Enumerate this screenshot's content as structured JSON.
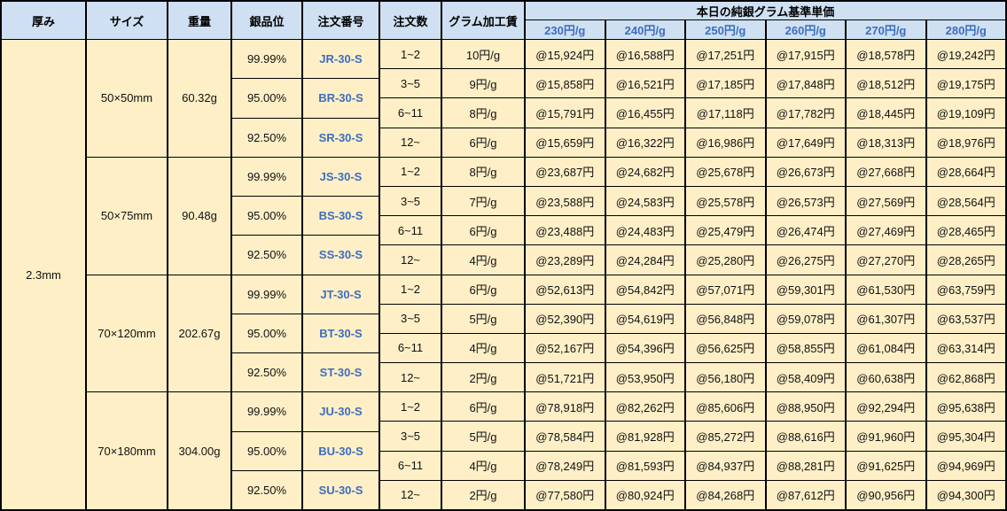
{
  "colors": {
    "header_bg": "#cee0f2",
    "body_bg": "#feefc7",
    "accent_blue": "#3e6dbf",
    "border": "#000000"
  },
  "header": {
    "thickness": "厚み",
    "size": "サイズ",
    "weight": "重量",
    "purity": "銀品位",
    "order_no": "注文番号",
    "order_qty": "注文数",
    "gram_fee": "グラム加工賃",
    "base_price_group": "本日の純銀グラム基準単価",
    "price_columns": [
      "230円/g",
      "240円/g",
      "250円/g",
      "260円/g",
      "270円/g",
      "280円/g"
    ]
  },
  "thickness_value": "2.3mm",
  "blocks": [
    {
      "size": "50×50mm",
      "weight": "60.32g",
      "purities": [
        {
          "purity": "99.99%",
          "code": "JR-30-S"
        },
        {
          "purity": "95.00%",
          "code": "BR-30-S"
        },
        {
          "purity": "92.50%",
          "code": "SR-30-S"
        }
      ],
      "rows": [
        {
          "qty": "1~2",
          "fee": "10円/g",
          "prices": [
            "@15,924円",
            "@16,588円",
            "@17,251円",
            "@17,915円",
            "@18,578円",
            "@19,242円"
          ]
        },
        {
          "qty": "3~5",
          "fee": "9円/g",
          "prices": [
            "@15,858円",
            "@16,521円",
            "@17,185円",
            "@17,848円",
            "@18,512円",
            "@19,175円"
          ]
        },
        {
          "qty": "6~11",
          "fee": "8円/g",
          "prices": [
            "@15,791円",
            "@16,455円",
            "@17,118円",
            "@17,782円",
            "@18,445円",
            "@19,109円"
          ]
        },
        {
          "qty": "12~",
          "fee": "6円/g",
          "prices": [
            "@15,659円",
            "@16,322円",
            "@16,986円",
            "@17,649円",
            "@18,313円",
            "@18,976円"
          ]
        }
      ]
    },
    {
      "size": "50×75mm",
      "weight": "90.48g",
      "purities": [
        {
          "purity": "99.99%",
          "code": "JS-30-S"
        },
        {
          "purity": "95.00%",
          "code": "BS-30-S"
        },
        {
          "purity": "92.50%",
          "code": "SS-30-S"
        }
      ],
      "rows": [
        {
          "qty": "1~2",
          "fee": "8円/g",
          "prices": [
            "@23,687円",
            "@24,682円",
            "@25,678円",
            "@26,673円",
            "@27,668円",
            "@28,664円"
          ]
        },
        {
          "qty": "3~5",
          "fee": "7円/g",
          "prices": [
            "@23,588円",
            "@24,583円",
            "@25,578円",
            "@26,573円",
            "@27,569円",
            "@28,564円"
          ]
        },
        {
          "qty": "6~11",
          "fee": "6円/g",
          "prices": [
            "@23,488円",
            "@24,483円",
            "@25,479円",
            "@26,474円",
            "@27,469円",
            "@28,465円"
          ]
        },
        {
          "qty": "12~",
          "fee": "4円/g",
          "prices": [
            "@23,289円",
            "@24,284円",
            "@25,280円",
            "@26,275円",
            "@27,270円",
            "@28,265円"
          ]
        }
      ]
    },
    {
      "size": "70×120mm",
      "weight": "202.67g",
      "purities": [
        {
          "purity": "99.99%",
          "code": "JT-30-S"
        },
        {
          "purity": "95.00%",
          "code": "BT-30-S"
        },
        {
          "purity": "92.50%",
          "code": "ST-30-S"
        }
      ],
      "rows": [
        {
          "qty": "1~2",
          "fee": "6円/g",
          "prices": [
            "@52,613円",
            "@54,842円",
            "@57,071円",
            "@59,301円",
            "@61,530円",
            "@63,759円"
          ]
        },
        {
          "qty": "3~5",
          "fee": "5円/g",
          "prices": [
            "@52,390円",
            "@54,619円",
            "@56,848円",
            "@59,078円",
            "@61,307円",
            "@63,537円"
          ]
        },
        {
          "qty": "6~11",
          "fee": "4円/g",
          "prices": [
            "@52,167円",
            "@54,396円",
            "@56,625円",
            "@58,855円",
            "@61,084円",
            "@63,314円"
          ]
        },
        {
          "qty": "12~",
          "fee": "2円/g",
          "prices": [
            "@51,721円",
            "@53,950円",
            "@56,180円",
            "@58,409円",
            "@60,638円",
            "@62,868円"
          ]
        }
      ]
    },
    {
      "size": "70×180mm",
      "weight": "304.00g",
      "purities": [
        {
          "purity": "99.99%",
          "code": "JU-30-S"
        },
        {
          "purity": "95.00%",
          "code": "BU-30-S"
        },
        {
          "purity": "92.50%",
          "code": "SU-30-S"
        }
      ],
      "rows": [
        {
          "qty": "1~2",
          "fee": "6円/g",
          "prices": [
            "@78,918円",
            "@82,262円",
            "@85,606円",
            "@88,950円",
            "@92,294円",
            "@95,638円"
          ]
        },
        {
          "qty": "3~5",
          "fee": "5円/g",
          "prices": [
            "@78,584円",
            "@81,928円",
            "@85,272円",
            "@88,616円",
            "@91,960円",
            "@95,304円"
          ]
        },
        {
          "qty": "6~11",
          "fee": "4円/g",
          "prices": [
            "@78,249円",
            "@81,593円",
            "@84,937円",
            "@88,281円",
            "@91,625円",
            "@94,969円"
          ]
        },
        {
          "qty": "12~",
          "fee": "2円/g",
          "prices": [
            "@77,580円",
            "@80,924円",
            "@84,268円",
            "@87,612円",
            "@90,956円",
            "@94,300円"
          ]
        }
      ]
    }
  ]
}
